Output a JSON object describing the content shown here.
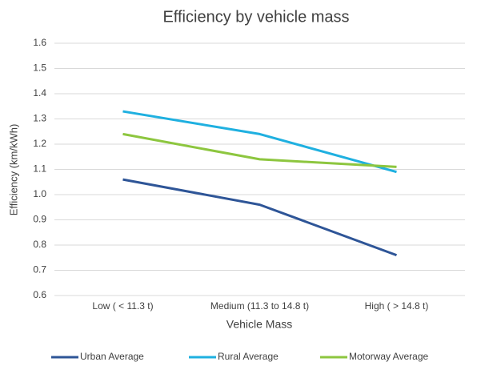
{
  "chart_data": {
    "type": "line",
    "title": "Efficiency by vehicle mass",
    "x_label": "Vehicle Mass",
    "y_label": "Efficiency (km/kWh)",
    "categories": [
      "Low ( < 11.3 t)",
      "Medium (11.3 to 14.8 t)",
      "High ( > 14.8 t)"
    ],
    "series": [
      {
        "name": "Urban Average",
        "color": "#2e5597",
        "values": [
          1.06,
          0.96,
          0.76
        ]
      },
      {
        "name": "Rural Average",
        "color": "#1fb0e0",
        "values": [
          1.33,
          1.24,
          1.09
        ]
      },
      {
        "name": "Motorway Average",
        "color": "#8dc63f",
        "values": [
          1.24,
          1.14,
          1.11
        ]
      }
    ],
    "ylim": [
      0.6,
      1.6
    ],
    "yticks": [
      0.6,
      0.7,
      0.8,
      0.9,
      {
        "value": 1,
        "label": "1.0"
      },
      1.1,
      1.2,
      1.3,
      1.4,
      1.5,
      1.6
    ],
    "grid": true,
    "legend": "bottom"
  }
}
